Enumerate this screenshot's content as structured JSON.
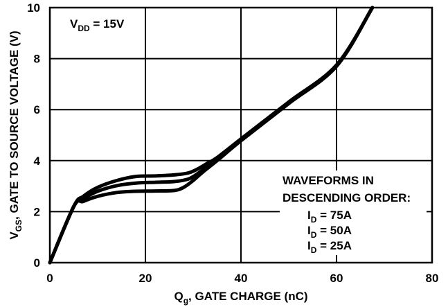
{
  "chart_data": {
    "type": "line",
    "xlabel_main": "Q",
    "xlabel_sub": "g",
    "xlabel_rest": ", GATE CHARGE (nC)",
    "ylabel_main": "V",
    "ylabel_sub": "GS",
    "ylabel_rest": ", GATE TO SOURCE VOLTAGE (V)",
    "xlim": [
      0,
      80
    ],
    "ylim": [
      0,
      10
    ],
    "x_ticks": [
      "0",
      "20",
      "40",
      "60",
      "80"
    ],
    "y_ticks": [
      "0",
      "2",
      "4",
      "6",
      "8",
      "10"
    ],
    "grid": true,
    "vdd_label": {
      "main": "V",
      "sub": "DD",
      "rest": " = 15V"
    },
    "legend": {
      "heading_line1": "WAVEFORMS IN",
      "heading_line2": "DESCENDING ORDER:",
      "entries": [
        {
          "main": "I",
          "sub": "D",
          "rest": " = 75A"
        },
        {
          "main": "I",
          "sub": "D",
          "rest": " = 50A"
        },
        {
          "main": "I",
          "sub": "D",
          "rest": " = 25A"
        }
      ]
    },
    "series": [
      {
        "name": "ID = 75A",
        "x": [
          0,
          5,
          7,
          10,
          14,
          18,
          22,
          26,
          29,
          31,
          33,
          35,
          40,
          50,
          60,
          67.5
        ],
        "y": [
          0,
          2.2,
          2.6,
          2.95,
          3.22,
          3.38,
          3.4,
          3.44,
          3.52,
          3.68,
          3.9,
          4.12,
          4.85,
          6.3,
          7.75,
          10
        ]
      },
      {
        "name": "ID = 50A",
        "x": [
          0,
          5,
          7,
          10,
          14,
          18,
          22,
          26,
          29,
          31,
          33,
          35,
          40,
          50,
          60,
          67.5
        ],
        "y": [
          0,
          2.2,
          2.5,
          2.8,
          3.02,
          3.12,
          3.15,
          3.18,
          3.28,
          3.5,
          3.78,
          4.05,
          4.82,
          6.28,
          7.72,
          10
        ]
      },
      {
        "name": "ID = 25A",
        "x": [
          0,
          5,
          7,
          10,
          14,
          18,
          22,
          26,
          28,
          30,
          32,
          35,
          40,
          50,
          60,
          67.5
        ],
        "y": [
          0,
          2.2,
          2.4,
          2.6,
          2.75,
          2.8,
          2.81,
          2.83,
          2.95,
          3.22,
          3.55,
          4.0,
          4.78,
          6.24,
          7.7,
          10
        ]
      }
    ]
  }
}
